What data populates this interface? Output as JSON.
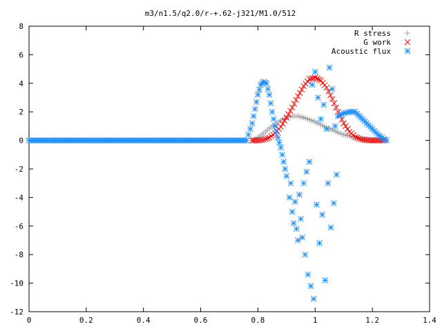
{
  "chart_data": {
    "type": "scatter",
    "title": "m3/n1.5/q2.0/r-+.62-j321/M1.0/512",
    "xlabel": "",
    "ylabel": "",
    "xlim": [
      0,
      1.4
    ],
    "ylim": [
      -12,
      8
    ],
    "x_ticks": [
      "0",
      "0.2",
      "0.4",
      "0.6",
      "0.8",
      "1",
      "1.2",
      "1.4"
    ],
    "y_ticks": [
      "8",
      "6",
      "4",
      "2",
      "0",
      "-2",
      "-4",
      "-6",
      "-8",
      "-10",
      "-12"
    ],
    "grid": false,
    "legend_position": "top-right",
    "series": [
      {
        "name": "R stress",
        "marker": "plus",
        "color": "#a0a0a0",
        "x": [
          0.78,
          0.8,
          0.82,
          0.84,
          0.86,
          0.88,
          0.9,
          0.92,
          0.94,
          0.96,
          0.98,
          1.0,
          1.02,
          1.04,
          1.06,
          1.08,
          1.1,
          1.12,
          1.14,
          1.16,
          1.18,
          1.2,
          1.22,
          1.24
        ],
        "y": [
          0,
          0.2,
          0.5,
          0.85,
          1.15,
          1.4,
          1.6,
          1.7,
          1.7,
          1.6,
          1.45,
          1.3,
          1.1,
          0.9,
          0.75,
          0.55,
          0.4,
          0.3,
          0.2,
          0.12,
          0.07,
          0.04,
          0.02,
          0
        ]
      },
      {
        "name": "G work",
        "marker": "cross",
        "color": "#ff0000",
        "x": [
          0.78,
          0.8,
          0.82,
          0.84,
          0.86,
          0.88,
          0.9,
          0.92,
          0.94,
          0.96,
          0.98,
          1.0,
          1.02,
          1.04,
          1.06,
          1.08,
          1.1,
          1.12,
          1.14,
          1.16,
          1.18,
          1.2,
          1.22,
          1.24
        ],
        "y": [
          0,
          0,
          0.05,
          0.2,
          0.5,
          0.95,
          1.6,
          2.3,
          3.1,
          3.8,
          4.3,
          4.4,
          4.2,
          3.7,
          2.9,
          2.0,
          1.2,
          0.6,
          0.25,
          0.08,
          0.02,
          0,
          0,
          0
        ]
      },
      {
        "name": "Acoustic flux",
        "marker": "star",
        "color": "#1e90ff",
        "x": [
          0.0,
          0.1,
          0.2,
          0.3,
          0.4,
          0.5,
          0.6,
          0.7,
          0.76,
          0.78,
          0.79,
          0.8,
          0.81,
          0.82,
          0.83,
          0.84,
          0.85,
          0.86,
          0.87,
          0.88,
          0.89,
          0.9,
          0.91,
          0.915,
          0.92,
          0.925,
          0.93,
          0.935,
          0.94,
          0.945,
          0.95,
          0.955,
          0.96,
          0.965,
          0.97,
          0.975,
          0.98,
          0.985,
          0.99,
          0.995,
          1.0,
          1.005,
          1.01,
          1.015,
          1.02,
          1.025,
          1.03,
          1.035,
          1.04,
          1.045,
          1.05,
          1.055,
          1.06,
          1.065,
          1.07,
          1.075,
          1.08,
          1.1,
          1.12,
          1.14,
          1.16,
          1.18,
          1.2,
          1.22,
          1.24,
          1.25
        ],
        "y": [
          0,
          0,
          0,
          0,
          0,
          0,
          0,
          0,
          0,
          1.2,
          2.2,
          3.2,
          3.9,
          4.1,
          4.0,
          3.2,
          2.0,
          1.0,
          0.2,
          -0.5,
          -1.5,
          -2.5,
          -4.0,
          -3.0,
          -5.0,
          -5.8,
          -4.3,
          -6.2,
          -7.0,
          -3.8,
          -5.5,
          -6.8,
          -3.0,
          -8.0,
          -2.2,
          -9.4,
          -1.5,
          -10.2,
          3.9,
          -11.1,
          4.8,
          -4.5,
          3.0,
          -7.2,
          1.5,
          -5.2,
          2.5,
          -9.8,
          0.8,
          -3.0,
          5.1,
          -6.1,
          3.6,
          -4.4,
          1.0,
          -2.4,
          1.7,
          1.9,
          2.0,
          2.0,
          1.6,
          1.2,
          0.8,
          0.4,
          0.1,
          0
        ]
      }
    ]
  }
}
